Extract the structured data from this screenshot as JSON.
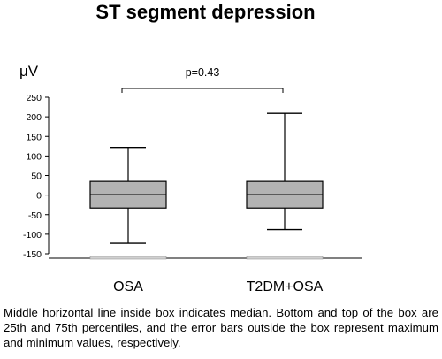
{
  "chart_data": {
    "type": "box",
    "title": "ST segment depression",
    "ylabel": "μV",
    "ylim": [
      -150,
      250
    ],
    "yticks": [
      -150,
      -100,
      -50,
      0,
      50,
      100,
      150,
      200,
      250
    ],
    "categories": [
      "OSA",
      "T2DM+OSA"
    ],
    "series": [
      {
        "category": "OSA",
        "min": -123,
        "q1": -33,
        "median": 1,
        "q3": 35,
        "max": 122
      },
      {
        "category": "T2DM+OSA",
        "min": -88,
        "q1": -33,
        "median": 1,
        "q3": 35,
        "max": 209
      }
    ],
    "annotation": {
      "text": "p=0.43",
      "between": [
        "OSA",
        "T2DM+OSA"
      ]
    },
    "grid": false,
    "colors": {
      "box_fill": "#b3b3b3",
      "stroke": "#000000",
      "baseline_bar": "#d0d0d0"
    }
  },
  "caption": "Middle horizontal line inside box indicates median. Bottom and top of the box are 25th and 75th percentiles, and the error bars outside the box represent maximum and minimum values, respectively."
}
